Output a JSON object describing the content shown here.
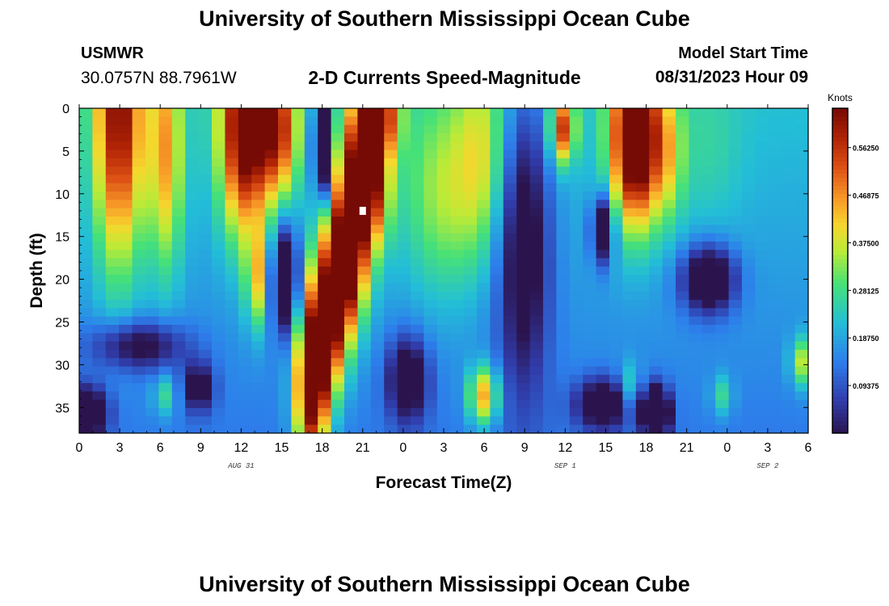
{
  "header": {
    "title": "University of Southern Mississippi Ocean Cube",
    "station_id": "USMWR",
    "station_coords": "30.0757N  88.7961W",
    "subtitle": "2-D Currents Speed-Magnitude",
    "model_label": "Model Start Time",
    "model_time": "08/31/2023 Hour 09",
    "bottom_title": "University of Southern Mississippi Ocean Cube"
  },
  "chart_data": {
    "type": "heatmap",
    "title": "2-D Currents Speed-Magnitude",
    "xlabel": "Forecast Time(Z)",
    "ylabel": "Depth (ft)",
    "x_unit": "hours since Aug 31 00Z",
    "xlim": [
      0,
      54
    ],
    "ylim": [
      38,
      0
    ],
    "x_ticks": [
      0,
      3,
      6,
      9,
      12,
      15,
      18,
      21,
      24,
      27,
      30,
      33,
      36,
      39,
      42,
      45,
      48,
      51,
      54
    ],
    "x_tick_labels": [
      "0",
      "3",
      "6",
      "9",
      "12",
      "15",
      "18",
      "21",
      "0",
      "3",
      "6",
      "9",
      "12",
      "15",
      "18",
      "21",
      "0",
      "3",
      "6"
    ],
    "y_ticks": [
      0,
      5,
      10,
      15,
      20,
      25,
      30,
      35
    ],
    "y_tick_labels": [
      "0",
      "5",
      "10",
      "15",
      "20",
      "25",
      "30",
      "35"
    ],
    "day_labels": [
      {
        "x": 12,
        "text": "AUG 31"
      },
      {
        "x": 36,
        "text": "SEP 1"
      },
      {
        "x": 51,
        "text": "SEP 2"
      }
    ],
    "colorbar": {
      "title": "Knots",
      "min": 0.0,
      "max": 0.64,
      "ticks": [
        0.09375,
        0.1875,
        0.28125,
        0.375,
        0.46875,
        0.5625
      ],
      "tick_labels": [
        "0.09375",
        "0.18750",
        "0.28125",
        "0.37500",
        "0.46875",
        "0.56250"
      ]
    },
    "grid_spec": {
      "nx": 55,
      "ny": 39,
      "x_step": 1,
      "y_step": 1,
      "note": "speed values approximated from color features"
    },
    "features": [
      {
        "x": 2.5,
        "d": 0,
        "sx": 1.8,
        "sy": 18,
        "v": 0.42
      },
      {
        "x": 6,
        "d": 5,
        "sx": 1.3,
        "sy": 14,
        "v": 0.25
      },
      {
        "x": 0,
        "d": 36,
        "sx": 1.6,
        "sy": 3,
        "v": -0.3
      },
      {
        "x": 4,
        "d": 28,
        "sx": 3.5,
        "sy": 3,
        "v": -0.2
      },
      {
        "x": 6,
        "d": 34,
        "sx": 0.9,
        "sy": 2.5,
        "v": 0.12
      },
      {
        "x": 8.5,
        "d": 33,
        "sx": 1.2,
        "sy": 3,
        "v": -0.2
      },
      {
        "x": 12,
        "d": 2,
        "sx": 1.8,
        "sy": 12,
        "v": 0.5
      },
      {
        "x": 13,
        "d": 20,
        "sx": 0.9,
        "sy": 6,
        "v": 0.22
      },
      {
        "x": 15,
        "d": 20,
        "sx": 1.0,
        "sy": 6,
        "v": -0.35
      },
      {
        "x": 14.5,
        "d": 2,
        "sx": 1.5,
        "sy": 8,
        "v": 0.35
      },
      {
        "x": 17.8,
        "d": 4,
        "sx": 0.6,
        "sy": 6,
        "v": -0.45
      },
      {
        "x": 17,
        "d": 34,
        "sx": 1.2,
        "sy": 8,
        "v": 0.5
      },
      {
        "x": 18,
        "d": 26,
        "sx": 1.5,
        "sy": 8,
        "v": 0.5
      },
      {
        "x": 19.5,
        "d": 18,
        "sx": 1.5,
        "sy": 8,
        "v": 0.55
      },
      {
        "x": 21,
        "d": 8,
        "sx": 1.6,
        "sy": 8,
        "v": 0.6
      },
      {
        "x": 22,
        "d": 0,
        "sx": 1.5,
        "sy": 5,
        "v": 0.4
      },
      {
        "x": 24.3,
        "d": 32,
        "sx": 1.5,
        "sy": 5,
        "v": -0.25
      },
      {
        "x": 30,
        "d": 34,
        "sx": 1.1,
        "sy": 3.5,
        "v": 0.3
      },
      {
        "x": 27,
        "d": 10,
        "sx": 3,
        "sy": 12,
        "v": 0.15
      },
      {
        "x": 30,
        "d": 5,
        "sx": 2,
        "sy": 12,
        "v": 0.15
      },
      {
        "x": 33,
        "d": 15,
        "sx": 2,
        "sy": 18,
        "v": -0.25
      },
      {
        "x": 36,
        "d": 2,
        "sx": 0.9,
        "sy": 4,
        "v": 0.35
      },
      {
        "x": 39,
        "d": 14,
        "sx": 0.8,
        "sy": 4,
        "v": -0.3
      },
      {
        "x": 39,
        "d": 35,
        "sx": 2,
        "sy": 3,
        "v": -0.25
      },
      {
        "x": 41,
        "d": 33,
        "sx": 0.8,
        "sy": 3,
        "v": 0.12
      },
      {
        "x": 41.5,
        "d": 3,
        "sx": 1.8,
        "sy": 10,
        "v": 0.6
      },
      {
        "x": 43,
        "d": 36,
        "sx": 1,
        "sy": 3,
        "v": -0.4
      },
      {
        "x": 44,
        "d": 5,
        "sx": 1.2,
        "sy": 8,
        "v": 0.15
      },
      {
        "x": 47,
        "d": 20,
        "sx": 2,
        "sy": 4,
        "v": -0.3
      },
      {
        "x": 47,
        "d": 5,
        "sx": 2.5,
        "sy": 10,
        "v": 0.05
      },
      {
        "x": 48,
        "d": 34,
        "sx": 0.8,
        "sy": 2.5,
        "v": 0.12
      },
      {
        "x": 54,
        "d": 30,
        "sx": 0.8,
        "sy": 3,
        "v": 0.2
      }
    ],
    "base_value": {
      "surface": 0.22,
      "bottom": 0.14
    },
    "annotations": [
      {
        "type": "marker",
        "x": 21,
        "d": 12,
        "shape": "small white square"
      }
    ]
  }
}
